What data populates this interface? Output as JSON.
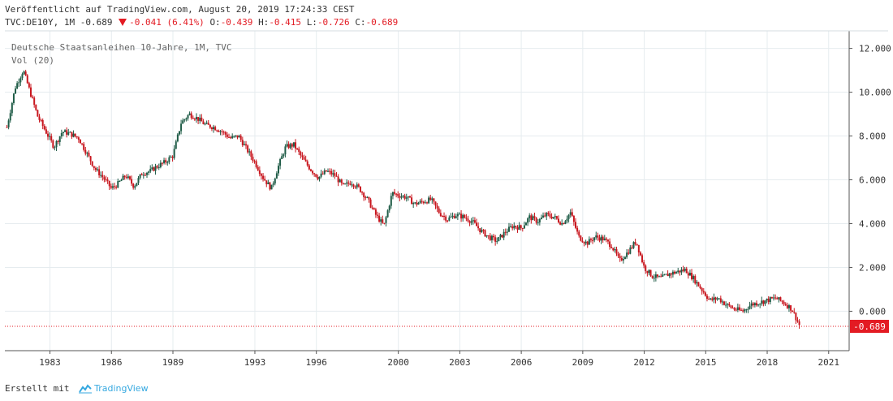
{
  "header": {
    "published": "Veröffentlicht auf TradingView.com, August 20, 2019 17:24:33 CEST",
    "symbol": "TVC:DE10Y, 1M",
    "last": "-0.689",
    "change": "-0.041 (6.41%)",
    "o_label": "O:",
    "o_value": "-0.439",
    "h_label": "H:",
    "h_value": "-0.415",
    "l_label": "L:",
    "l_value": "-0.726",
    "c_label": "C:",
    "c_value": "-0.689"
  },
  "legend": {
    "title": "Deutsche Staatsanleihen 10-Jahre, 1M, TVC",
    "indicator": "Vol (20)"
  },
  "footer": {
    "created_with": "Erstellt mit",
    "brand": "TradingView"
  },
  "colors": {
    "up": "#1f5c47",
    "down": "#c8161e",
    "price_line": "#e31b23",
    "grid": "#e6ecef",
    "axis": "#555555"
  },
  "chart_data": {
    "type": "line",
    "title": "Deutsche Staatsanleihen 10-Jahre, 1M, TVC",
    "xlabel": "",
    "ylabel": "",
    "x_ticks": [
      "1983",
      "1986",
      "1989",
      "1993",
      "1996",
      "2000",
      "2003",
      "2006",
      "2009",
      "2012",
      "2015",
      "2018",
      "2021"
    ],
    "y_ticks": [
      "12.000",
      "10.000",
      "8.000",
      "6.000",
      "4.000",
      "2.000",
      "0.000"
    ],
    "xlim": [
      1980.8,
      2022.0
    ],
    "ylim": [
      -1.8,
      12.8
    ],
    "last_price_label": "-0.689",
    "grid": true,
    "series": [
      {
        "x": [
          1980.9,
          1981.3,
          1981.7,
          1982.1,
          1982.4,
          1982.8,
          1983.2,
          1983.6,
          1984.0,
          1984.4,
          1984.8,
          1985.2,
          1985.6,
          1986.0,
          1986.3,
          1986.7,
          1987.1,
          1987.5,
          1987.9,
          1988.2,
          1988.6,
          1989.0,
          1989.4,
          1989.8,
          1990.2,
          1990.6,
          1991.0,
          1991.4,
          1991.8,
          1992.2,
          1992.6,
          1993.0,
          1993.4,
          1993.8,
          1994.1,
          1994.5,
          1994.9,
          1995.3,
          1995.7,
          1996.1,
          1996.5,
          1996.9,
          1997.3,
          1997.7,
          1998.1,
          1998.5,
          1998.9,
          1999.3,
          1999.7,
          2000.0,
          2000.4,
          2000.8,
          2001.2,
          2001.6,
          2002.0,
          2002.4,
          2002.8,
          2003.2,
          2003.6,
          2004.0,
          2004.4,
          2004.8,
          2005.2,
          2005.6,
          2006.0,
          2006.4,
          2006.8,
          2007.2,
          2007.6,
          2008.0,
          2008.4,
          2008.8,
          2009.2,
          2009.6,
          2010.0,
          2010.4,
          2010.8,
          2011.2,
          2011.6,
          2012.0,
          2012.4,
          2012.8,
          2013.2,
          2013.6,
          2014.0,
          2014.4,
          2014.8,
          2015.2,
          2015.6,
          2016.0,
          2016.4,
          2016.8,
          2017.2,
          2017.6,
          2018.0,
          2018.4,
          2018.8,
          2019.2,
          2019.6
        ],
        "values": [
          8.4,
          10.2,
          11.0,
          9.8,
          8.9,
          8.2,
          7.5,
          8.2,
          8.1,
          7.9,
          7.2,
          6.5,
          6.1,
          5.6,
          5.8,
          6.2,
          5.7,
          6.3,
          6.4,
          6.6,
          6.8,
          7.1,
          8.6,
          9.0,
          8.8,
          8.5,
          8.4,
          8.2,
          7.9,
          8.0,
          7.4,
          6.8,
          6.1,
          5.6,
          6.5,
          7.5,
          7.6,
          7.0,
          6.5,
          6.1,
          6.4,
          6.2,
          5.7,
          5.9,
          5.6,
          5.1,
          4.4,
          3.9,
          5.4,
          5.3,
          5.2,
          4.9,
          5.0,
          5.1,
          4.5,
          4.2,
          4.4,
          4.3,
          4.1,
          3.7,
          3.4,
          3.2,
          3.6,
          3.9,
          3.8,
          4.3,
          4.1,
          4.4,
          4.3,
          4.0,
          4.5,
          3.4,
          3.1,
          3.4,
          3.3,
          3.0,
          2.3,
          2.7,
          3.2,
          2.0,
          1.6,
          1.5,
          1.7,
          1.8,
          1.9,
          1.5,
          1.0,
          0.5,
          0.6,
          0.3,
          0.1,
          0.0,
          0.3,
          0.4,
          0.5,
          0.6,
          0.4,
          0.1,
          -0.689
        ]
      }
    ]
  }
}
